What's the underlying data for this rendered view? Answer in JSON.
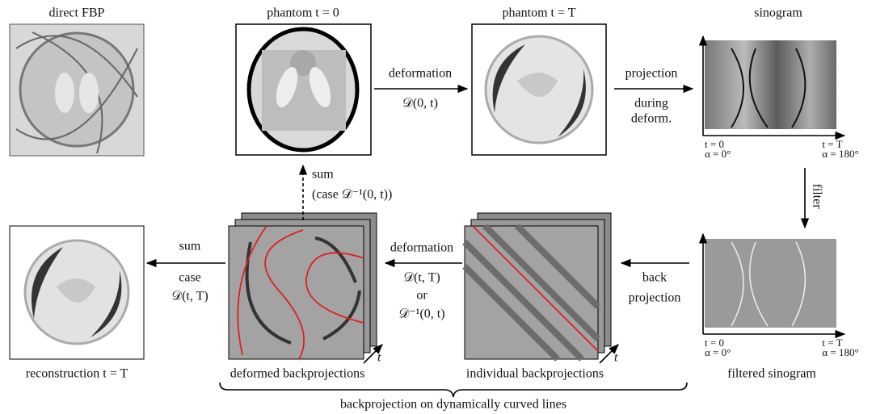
{
  "panels": [
    {
      "caption": "direct FBP"
    },
    {
      "caption": "phantom t = 0"
    },
    {
      "caption": "phantom t = T"
    },
    {
      "caption": "sinogram"
    },
    {
      "caption": "filtered sinogram"
    },
    {
      "caption": "individual backprojections"
    },
    {
      "caption": "deformed backprojections"
    },
    {
      "caption": "reconstruction t = T"
    }
  ],
  "arrows": [
    {
      "lines": [
        "deformation",
        "𝒟(0, t)"
      ]
    },
    {
      "lines": [
        "projection",
        "during",
        "deform."
      ]
    },
    {
      "lines": [
        "filter"
      ]
    },
    {
      "lines": [
        "back",
        "projection"
      ]
    },
    {
      "lines": [
        "deformation",
        "𝒟(t, T)",
        "or",
        "𝒟⁻¹(0, t)"
      ]
    },
    {
      "lines": [
        "sum",
        "case",
        "𝒟(t, T)"
      ]
    },
    {
      "lines": [
        "sum",
        "(case 𝒟⁻¹(0, t))"
      ]
    }
  ],
  "sinogram_axes": {
    "start": [
      "t = 0",
      "α = 0°"
    ],
    "end": [
      "t = T",
      "α = 180°"
    ]
  },
  "stack_axis": "t",
  "brace_label": "backprojection on dynamically curved lines"
}
